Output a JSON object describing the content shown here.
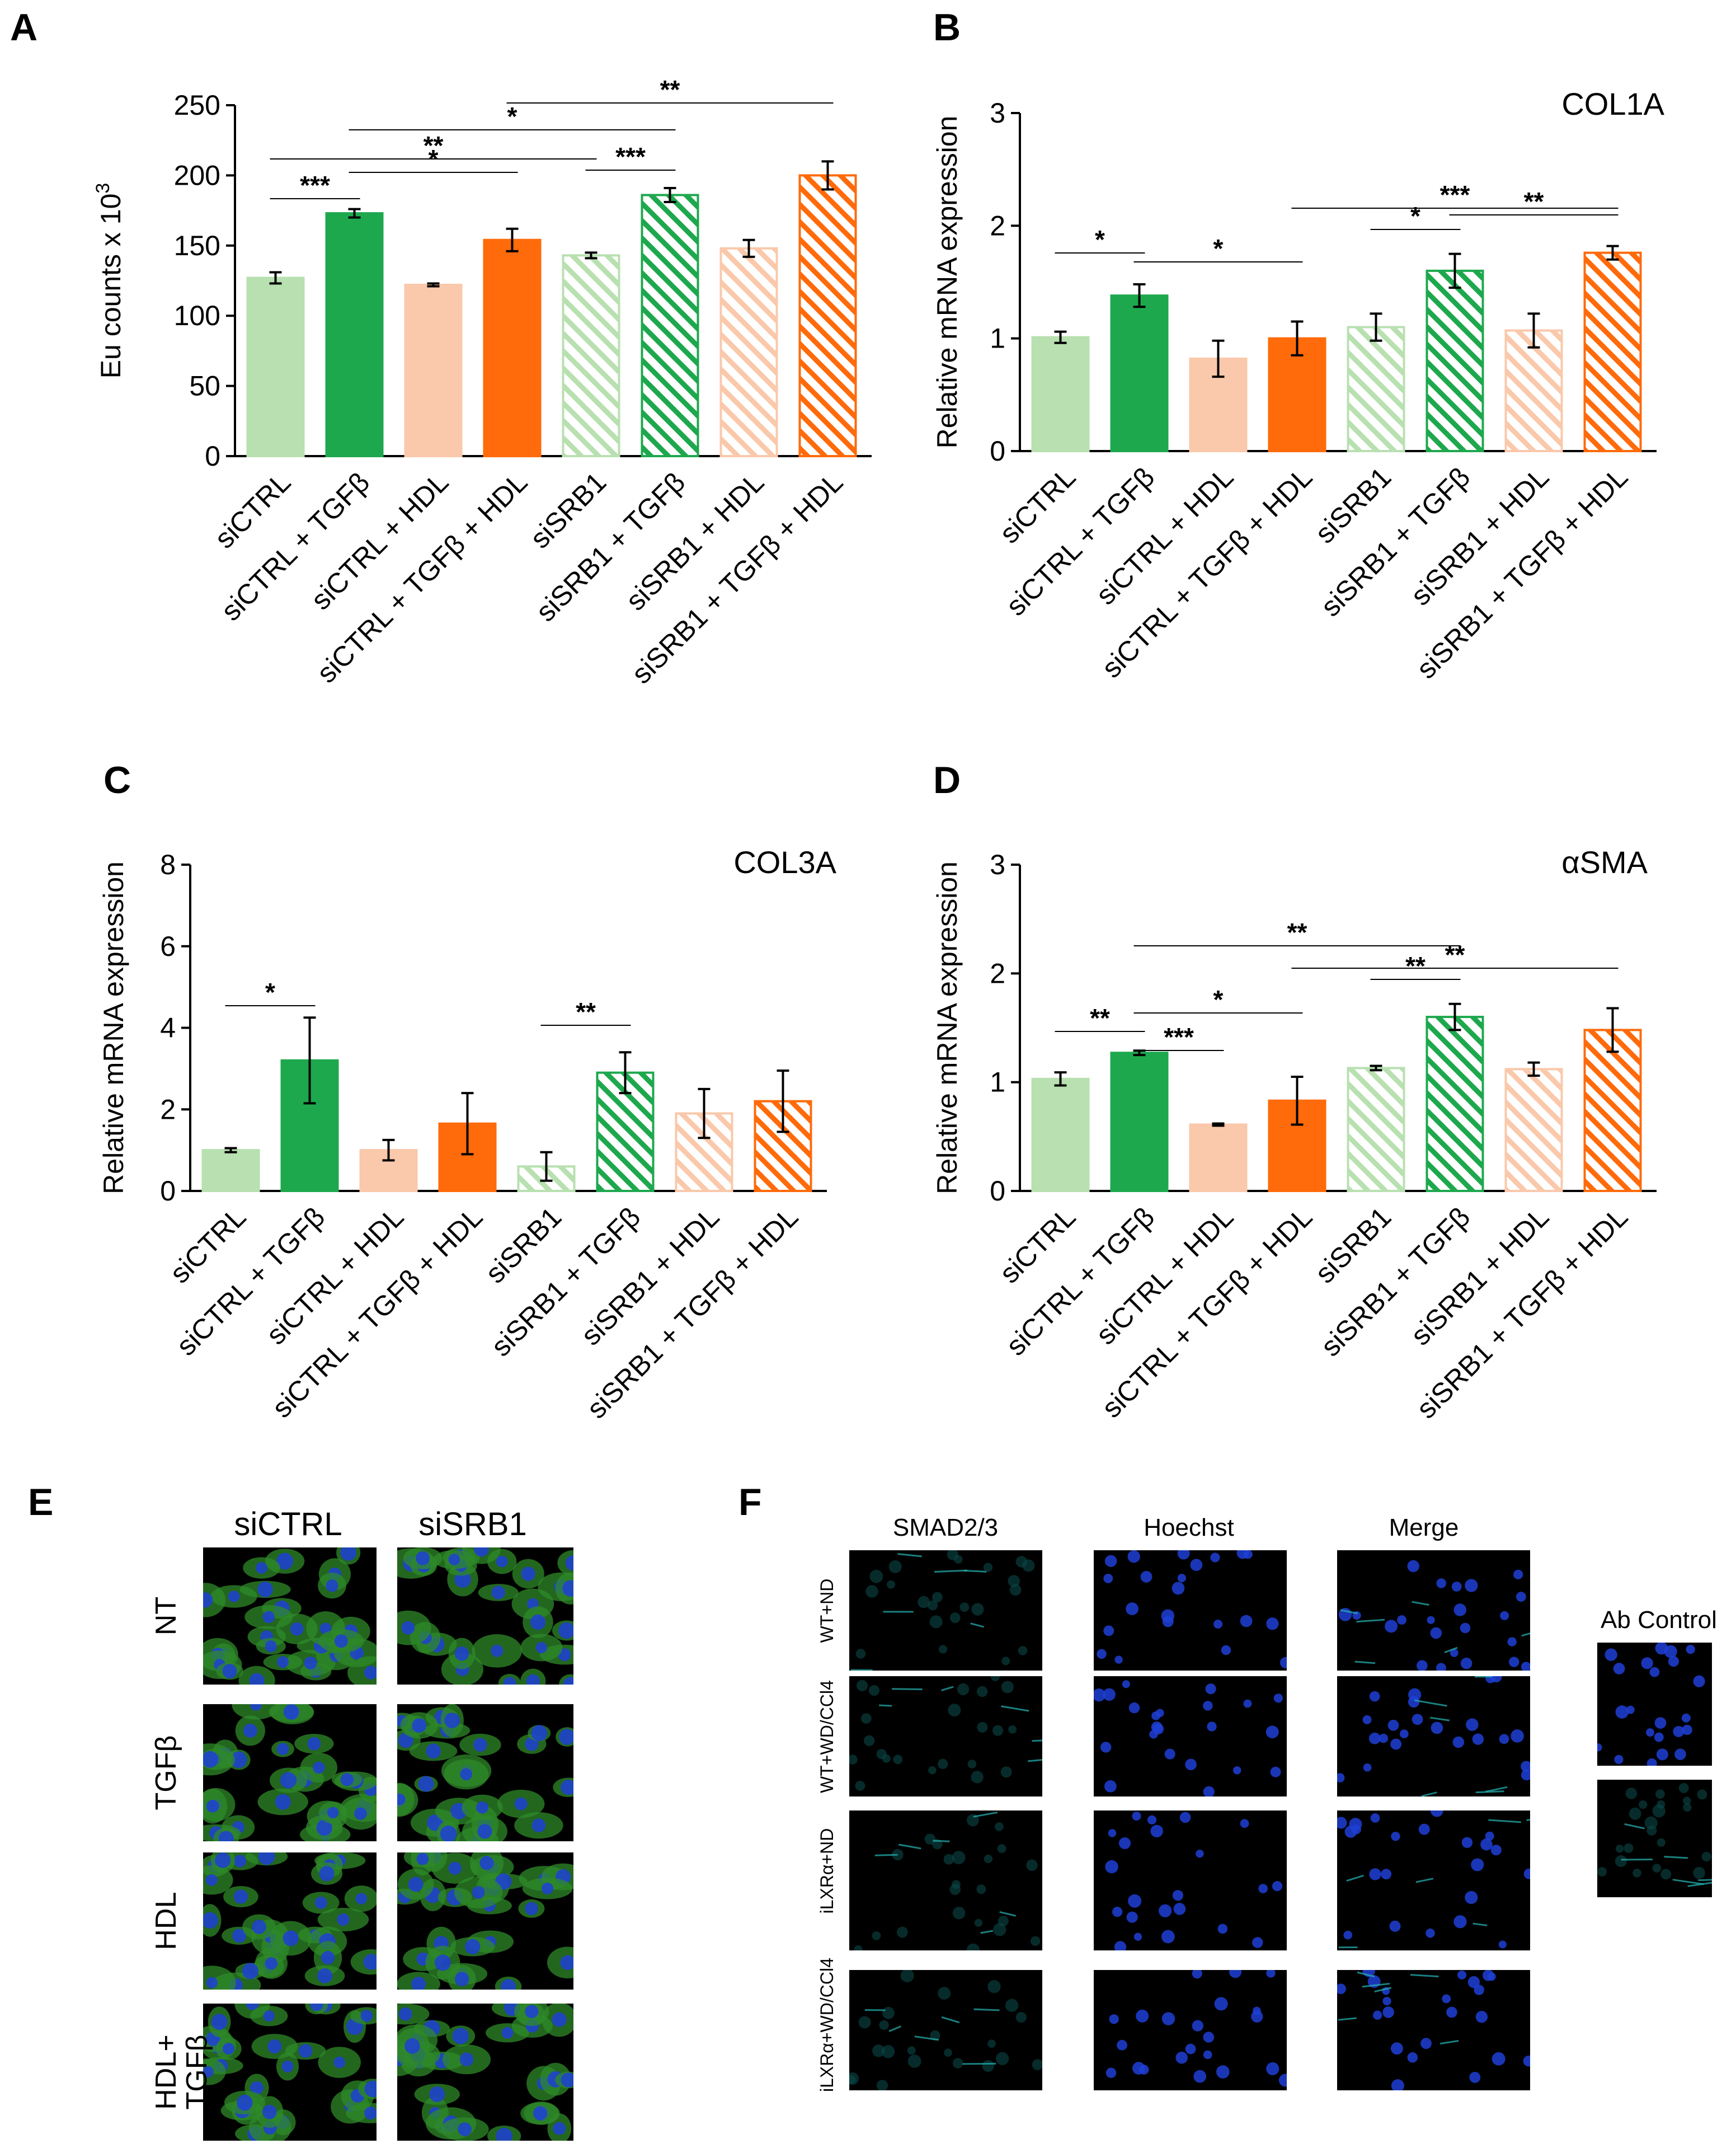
{
  "colors": {
    "light_green": "#b8e0b0",
    "green": "#1ea84e",
    "peach": "#fac8aa",
    "orange": "#ff6a0a",
    "hatch_light_green": "#b8e0b0",
    "hatch_green": "#1ea84e",
    "hatch_peach": "#fac8aa",
    "hatch_orange": "#ff6a0a"
  },
  "categories": [
    "siCTRL",
    "siCTRL + TGFβ",
    "siCTRL + HDL",
    "siCTRL + TGFβ + HDL",
    "siSRB1",
    "siSRB1 + TGFβ",
    "siSRB1 + HDL",
    "siSRB1 + TGFβ + HDL"
  ],
  "chart_data": [
    {
      "panel": "A",
      "type": "bar",
      "ylabel": "Eu counts x 10",
      "ylabel_sup": "3",
      "title": "",
      "ylim": [
        0,
        250
      ],
      "yticks": [
        0,
        50,
        100,
        150,
        200,
        250
      ],
      "values": [
        127,
        173,
        122,
        154,
        143,
        186,
        148,
        200
      ],
      "errors": [
        4,
        3,
        1,
        8,
        2,
        5,
        6,
        10
      ],
      "sig": [
        {
          "from": 0,
          "to": 1,
          "label": "***"
        },
        {
          "from": 1,
          "to": 3,
          "label": "*"
        },
        {
          "from": 0,
          "to": 4,
          "label": "**"
        },
        {
          "from": 1,
          "to": 5,
          "label": "*"
        },
        {
          "from": 4,
          "to": 5,
          "label": "***"
        },
        {
          "from": 3,
          "to": 7,
          "label": "**"
        }
      ]
    },
    {
      "panel": "B",
      "type": "bar",
      "ylabel": "Relative mRNA expression",
      "title": "COL1A",
      "ylim": [
        0,
        3
      ],
      "yticks": [
        0,
        1,
        2,
        3
      ],
      "values": [
        1.01,
        1.38,
        0.82,
        1.0,
        1.1,
        1.6,
        1.07,
        1.76
      ],
      "errors": [
        0.05,
        0.1,
        0.16,
        0.15,
        0.12,
        0.15,
        0.15,
        0.06
      ],
      "sig": [
        {
          "from": 0,
          "to": 1,
          "label": "*"
        },
        {
          "from": 1,
          "to": 3,
          "label": "*"
        },
        {
          "from": 4,
          "to": 5,
          "label": "*"
        },
        {
          "from": 5,
          "to": 7,
          "label": "**"
        },
        {
          "from": 3,
          "to": 7,
          "label": "***"
        }
      ]
    },
    {
      "panel": "C",
      "type": "bar",
      "ylabel": "Relative mRNA expression",
      "title": "COL3A",
      "ylim": [
        0,
        8
      ],
      "yticks": [
        0,
        2,
        4,
        6,
        8
      ],
      "values": [
        1.0,
        3.2,
        1.0,
        1.65,
        0.6,
        2.9,
        1.9,
        2.2
      ],
      "errors": [
        0.05,
        1.05,
        0.25,
        0.75,
        0.35,
        0.5,
        0.6,
        0.75
      ],
      "sig": [
        {
          "from": 0,
          "to": 1,
          "label": "*"
        },
        {
          "from": 4,
          "to": 5,
          "label": "**"
        }
      ]
    },
    {
      "panel": "D",
      "type": "bar",
      "ylabel": "Relative mRNA expression",
      "title": "αSMA",
      "ylim": [
        0,
        3
      ],
      "yticks": [
        0,
        1,
        2,
        3
      ],
      "values": [
        1.03,
        1.27,
        0.61,
        0.83,
        1.13,
        1.6,
        1.12,
        1.48
      ],
      "errors": [
        0.06,
        0.02,
        0.01,
        0.22,
        0.02,
        0.12,
        0.06,
        0.2
      ],
      "sig": [
        {
          "from": 0,
          "to": 1,
          "label": "**"
        },
        {
          "from": 1,
          "to": 2,
          "label": "***"
        },
        {
          "from": 1,
          "to": 3,
          "label": "*"
        },
        {
          "from": 1,
          "to": 5,
          "label": "**"
        },
        {
          "from": 4,
          "to": 5,
          "label": "**"
        },
        {
          "from": 3,
          "to": 7,
          "label": "**"
        }
      ]
    }
  ],
  "panel_letters": {
    "A": "A",
    "B": "B",
    "C": "C",
    "D": "D",
    "E": "E",
    "F": "F"
  },
  "panel_e": {
    "columns": [
      "siCTRL",
      "siSRB1"
    ],
    "rows": [
      "NT",
      "TGFβ",
      "HDL",
      "HDL+\nTGFβ"
    ]
  },
  "panel_f": {
    "columns": [
      "SMAD2/3",
      "Hoechst",
      "Merge"
    ],
    "rows": [
      "WT+ND",
      "WT+WD/CCl4",
      "iLXRα+ND",
      "iLXRα+WD/CCl4"
    ],
    "ab_control_label": "Ab Control"
  }
}
